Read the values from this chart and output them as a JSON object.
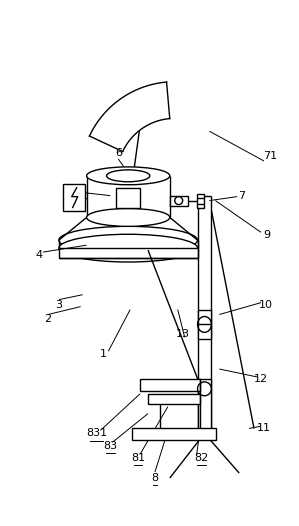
{
  "bg_color": "#ffffff",
  "line_color": "#000000",
  "fig_width": 2.99,
  "fig_height": 5.26,
  "dpi": 100
}
